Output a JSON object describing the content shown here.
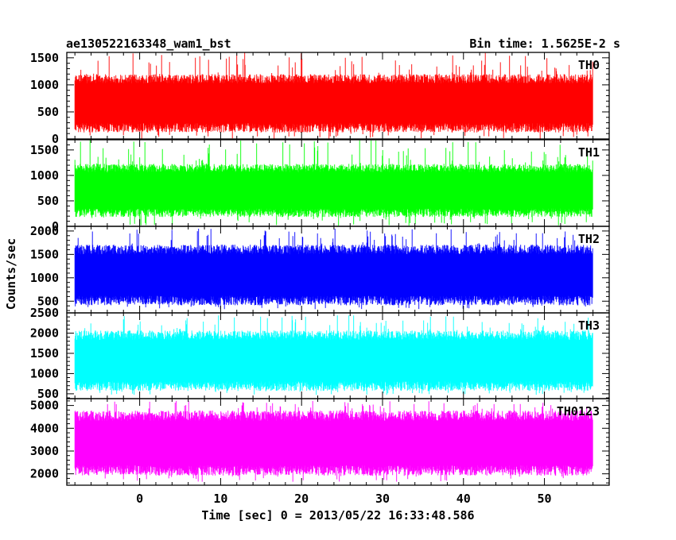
{
  "chart_data": {
    "type": "line",
    "title_left": "ae130522163348_wam1_bst",
    "title_right": "Bin time: 1.5625E-2 s",
    "xlabel": "Time [sec] 0 = 2013/05/22 16:33:48.586",
    "ylabel": "Counts/sec",
    "xlim": [
      -9,
      58
    ],
    "x_ticks": [
      0,
      10,
      20,
      30,
      40,
      50
    ],
    "x_range_of_data": [
      -8,
      56
    ],
    "grid": false,
    "panels": [
      {
        "name": "TH0",
        "color": "#ff0000",
        "ylim": [
          0,
          1600
        ],
        "y_ticks": [
          0,
          500,
          1000,
          1500
        ],
        "band": [
          170,
          1150
        ],
        "spikes": [
          0,
          1600
        ]
      },
      {
        "name": "TH1",
        "color": "#00ff00",
        "ylim": [
          0,
          1700
        ],
        "y_ticks": [
          0,
          500,
          1000,
          1500
        ],
        "band": [
          230,
          1180
        ],
        "spikes": [
          10,
          1700
        ]
      },
      {
        "name": "TH2",
        "color": "#0000ff",
        "ylim": [
          250,
          2100
        ],
        "y_ticks": [
          500,
          1000,
          1500,
          2000
        ],
        "band": [
          470,
          1650
        ],
        "spikes": [
          330,
          2050
        ]
      },
      {
        "name": "TH3",
        "color": "#00ffff",
        "ylim": [
          380,
          2500
        ],
        "y_ticks": [
          500,
          1000,
          1500,
          2000,
          2500
        ],
        "band": [
          640,
          2000
        ],
        "spikes": [
          470,
          2450
        ]
      },
      {
        "name": "TH0123",
        "color": "#ff00ff",
        "ylim": [
          1500,
          5300
        ],
        "y_ticks": [
          2000,
          3000,
          4000,
          5000
        ],
        "band": [
          2050,
          4650
        ],
        "spikes": [
          1650,
          5200
        ]
      }
    ]
  }
}
